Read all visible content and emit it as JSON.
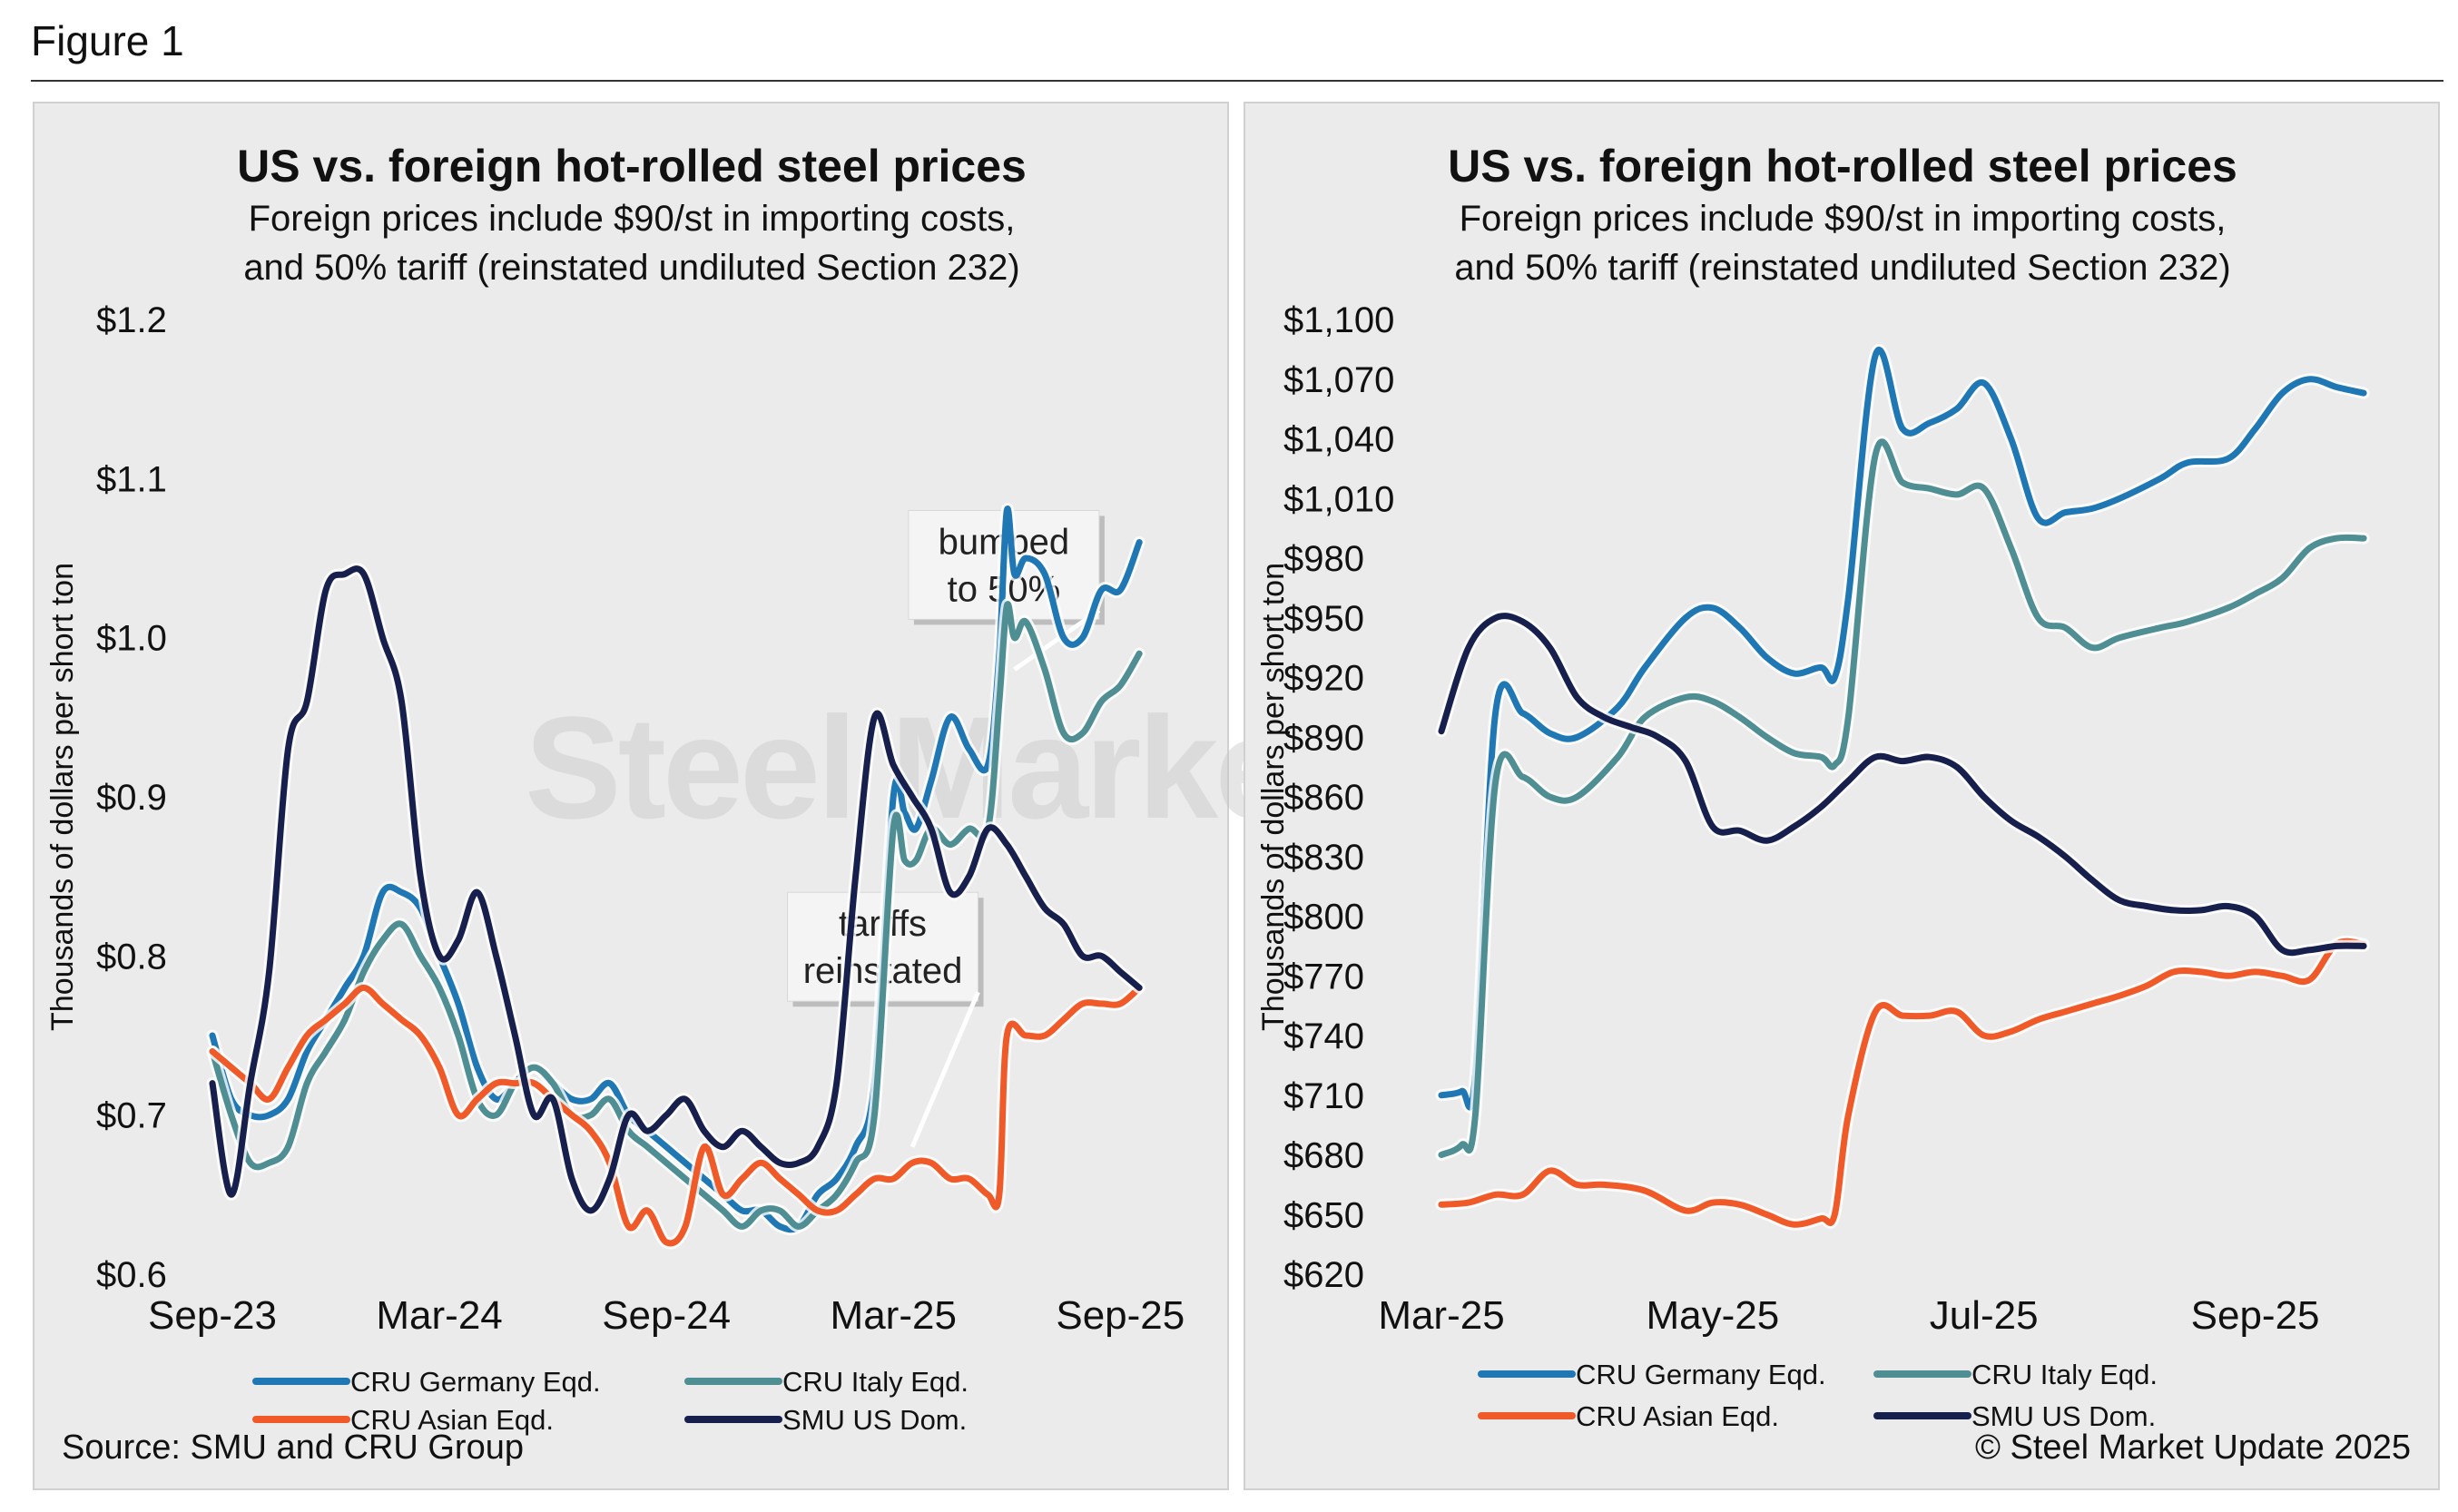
{
  "figure": {
    "label": "Figure 1",
    "source": "Source: SMU and CRU Group",
    "copyright": "© Steel Market Update 2025",
    "watermark": "Steel Market Update"
  },
  "colors": {
    "germany": "#1f77b4",
    "italy": "#4f8e93",
    "asian": "#ef5a28",
    "us": "#17204d"
  },
  "chart_data": [
    {
      "type": "line",
      "title": "US vs. foreign hot-rolled steel prices",
      "subtitle_line1": "Foreign prices include $90/st in importing costs,",
      "subtitle_line2": "and 50% tariff (reinstated undiluted Section 232)",
      "ylabel": "Thousands of dollars per short ton",
      "xlabel": "",
      "ylim": [
        0.6,
        1.2
      ],
      "yticks": [
        0.6,
        0.7,
        0.8,
        0.9,
        1.0,
        1.1,
        1.2
      ],
      "ytick_labels": [
        "$0.6",
        "$0.7",
        "$0.8",
        "$0.9",
        "$1.0",
        "$1.1",
        "$1.2"
      ],
      "xlim": [
        0,
        25
      ],
      "xticks": [
        0,
        6,
        12,
        18,
        24
      ],
      "xtick_labels": [
        "Sep-23",
        "Mar-24",
        "Sep-24",
        "Mar-25",
        "Sep-25"
      ],
      "legend_position": "bottom",
      "grid": false,
      "annotations": [
        {
          "line1": "bumped",
          "line2": "to 50%",
          "x": 21.2,
          "y": 0.98
        },
        {
          "line1": "tariffs",
          "line2": "reinstated",
          "x": 18.5,
          "y": 0.68
        }
      ],
      "series": [
        {
          "name": "CRU Germany Eqd.",
          "color_key": "germany",
          "x": [
            0,
            0.5,
            1,
            1.5,
            2,
            2.5,
            3,
            3.5,
            4,
            4.5,
            5,
            5.5,
            6,
            6.5,
            7,
            7.5,
            8,
            8.5,
            9,
            9.5,
            10,
            10.5,
            11,
            11.5,
            12,
            12.5,
            13,
            13.5,
            14,
            14.5,
            15,
            15.5,
            16,
            16.5,
            17,
            17.5,
            18,
            18.3,
            18.6,
            19,
            19.5,
            20,
            20.5,
            20.8,
            21,
            21.2,
            21.5,
            22,
            22.5,
            23,
            23.5,
            24,
            24.5
          ],
          "y": [
            0.75,
            0.71,
            0.7,
            0.7,
            0.71,
            0.74,
            0.76,
            0.78,
            0.8,
            0.84,
            0.84,
            0.83,
            0.8,
            0.77,
            0.73,
            0.71,
            0.72,
            0.73,
            0.72,
            0.71,
            0.71,
            0.72,
            0.7,
            0.69,
            0.68,
            0.67,
            0.66,
            0.65,
            0.64,
            0.64,
            0.63,
            0.63,
            0.65,
            0.66,
            0.68,
            0.72,
            0.9,
            0.89,
            0.88,
            0.91,
            0.95,
            0.93,
            0.92,
            0.99,
            1.08,
            1.04,
            1.05,
            1.04,
            1.0,
            1.0,
            1.03,
            1.03,
            1.06
          ]
        },
        {
          "name": "CRU Italy Eqd.",
          "color_key": "italy",
          "x": [
            0,
            0.5,
            1,
            1.5,
            2,
            2.5,
            3,
            3.5,
            4,
            4.5,
            5,
            5.5,
            6,
            6.5,
            7,
            7.5,
            8,
            8.5,
            9,
            9.5,
            10,
            10.5,
            11,
            11.5,
            12,
            12.5,
            13,
            13.5,
            14,
            14.5,
            15,
            15.5,
            16,
            16.5,
            17,
            17.5,
            18,
            18.3,
            18.6,
            19,
            19.5,
            20,
            20.5,
            20.8,
            21,
            21.2,
            21.5,
            22,
            22.5,
            23,
            23.5,
            24,
            24.5
          ],
          "y": [
            0.74,
            0.7,
            0.67,
            0.67,
            0.68,
            0.72,
            0.74,
            0.76,
            0.79,
            0.81,
            0.82,
            0.8,
            0.78,
            0.75,
            0.71,
            0.7,
            0.72,
            0.73,
            0.72,
            0.7,
            0.7,
            0.71,
            0.69,
            0.68,
            0.67,
            0.66,
            0.65,
            0.64,
            0.63,
            0.64,
            0.64,
            0.63,
            0.64,
            0.65,
            0.67,
            0.7,
            0.88,
            0.86,
            0.86,
            0.88,
            0.87,
            0.88,
            0.88,
            0.96,
            1.02,
            1.0,
            1.01,
            0.98,
            0.94,
            0.94,
            0.96,
            0.97,
            0.99
          ]
        },
        {
          "name": "CRU Asian Eqd.",
          "color_key": "asian",
          "x": [
            0,
            0.5,
            1,
            1.5,
            2,
            2.5,
            3,
            3.5,
            4,
            4.5,
            5,
            5.5,
            6,
            6.5,
            7,
            7.5,
            8,
            8.5,
            9,
            9.5,
            10,
            10.5,
            11,
            11.5,
            12,
            12.5,
            13,
            13.5,
            14,
            14.5,
            15,
            15.5,
            16,
            16.5,
            17,
            17.5,
            18,
            18.5,
            19,
            19.5,
            20,
            20.5,
            20.8,
            21,
            21.5,
            22,
            22.5,
            23,
            23.5,
            24,
            24.5
          ],
          "y": [
            0.74,
            0.73,
            0.72,
            0.71,
            0.73,
            0.75,
            0.76,
            0.77,
            0.78,
            0.77,
            0.76,
            0.75,
            0.73,
            0.7,
            0.71,
            0.72,
            0.72,
            0.72,
            0.71,
            0.7,
            0.69,
            0.67,
            0.63,
            0.64,
            0.62,
            0.63,
            0.68,
            0.65,
            0.66,
            0.67,
            0.66,
            0.65,
            0.64,
            0.64,
            0.65,
            0.66,
            0.66,
            0.67,
            0.67,
            0.66,
            0.66,
            0.65,
            0.65,
            0.75,
            0.75,
            0.75,
            0.76,
            0.77,
            0.77,
            0.77,
            0.78
          ]
        },
        {
          "name": "SMU US Dom.",
          "color_key": "us",
          "x": [
            0,
            0.5,
            1,
            1.5,
            2,
            2.5,
            3,
            3.5,
            4,
            4.5,
            5,
            5.5,
            6,
            6.5,
            7,
            7.5,
            8,
            8.5,
            9,
            9.5,
            10,
            10.5,
            11,
            11.5,
            12,
            12.5,
            13,
            13.5,
            14,
            14.5,
            15,
            15.5,
            16,
            16.5,
            17,
            17.5,
            18,
            18.5,
            19,
            19.5,
            20,
            20.5,
            21,
            21.5,
            22,
            22.5,
            23,
            23.5,
            24,
            24.5
          ],
          "y": [
            0.72,
            0.65,
            0.72,
            0.79,
            0.93,
            0.96,
            1.03,
            1.04,
            1.04,
            1.0,
            0.96,
            0.85,
            0.8,
            0.81,
            0.84,
            0.8,
            0.75,
            0.7,
            0.71,
            0.66,
            0.64,
            0.66,
            0.7,
            0.69,
            0.7,
            0.71,
            0.69,
            0.68,
            0.69,
            0.68,
            0.67,
            0.67,
            0.68,
            0.72,
            0.85,
            0.95,
            0.92,
            0.9,
            0.88,
            0.84,
            0.85,
            0.88,
            0.87,
            0.85,
            0.83,
            0.82,
            0.8,
            0.8,
            0.79,
            0.78
          ]
        }
      ]
    },
    {
      "type": "line",
      "title": "US vs. foreign hot-rolled steel prices",
      "subtitle_line1": "Foreign prices include $90/st in importing costs,",
      "subtitle_line2": "and 50% tariff (reinstated undiluted Section 232)",
      "ylabel": "Thousands of dollars per short ton",
      "xlabel": "",
      "ylim": [
        620,
        1100
      ],
      "yticks": [
        620,
        650,
        680,
        710,
        740,
        770,
        800,
        830,
        860,
        890,
        920,
        950,
        980,
        1010,
        1040,
        1070,
        1100
      ],
      "ytick_labels": [
        "$620",
        "$650",
        "$680",
        "$710",
        "$740",
        "$770",
        "$800",
        "$830",
        "$860",
        "$890",
        "$920",
        "$950",
        "$980",
        "$1,010",
        "$1,040",
        "$1,070",
        "$1,100"
      ],
      "xlim": [
        0,
        7.0
      ],
      "xticks": [
        0,
        2,
        4,
        6
      ],
      "xtick_labels": [
        "Mar-25",
        "May-25",
        "Jul-25",
        "Sep-25"
      ],
      "legend_position": "bottom",
      "grid": false,
      "series": [
        {
          "name": "CRU Germany Eqd.",
          "color_key": "germany",
          "x": [
            0,
            0.15,
            0.25,
            0.4,
            0.6,
            0.8,
            1.0,
            1.3,
            1.5,
            1.8,
            2.0,
            2.2,
            2.4,
            2.6,
            2.8,
            2.9,
            3.0,
            3.2,
            3.4,
            3.6,
            3.8,
            4.0,
            4.2,
            4.4,
            4.6,
            4.8,
            5.0,
            5.3,
            5.5,
            5.8,
            6.0,
            6.2,
            6.4,
            6.6,
            6.8
          ],
          "y": [
            710,
            712,
            720,
            903,
            902,
            892,
            890,
            905,
            925,
            950,
            955,
            945,
            930,
            922,
            925,
            920,
            960,
            1082,
            1045,
            1048,
            1055,
            1068,
            1040,
            1000,
            1003,
            1005,
            1010,
            1020,
            1028,
            1030,
            1045,
            1063,
            1070,
            1066,
            1063
          ]
        },
        {
          "name": "CRU Italy Eqd.",
          "color_key": "italy",
          "x": [
            0,
            0.15,
            0.25,
            0.4,
            0.6,
            0.8,
            1.0,
            1.3,
            1.5,
            1.8,
            2.0,
            2.2,
            2.4,
            2.6,
            2.8,
            2.9,
            3.0,
            3.2,
            3.4,
            3.6,
            3.8,
            4.0,
            4.2,
            4.4,
            4.6,
            4.8,
            5.0,
            5.3,
            5.5,
            5.8,
            6.0,
            6.2,
            6.4,
            6.6,
            6.8
          ],
          "y": [
            680,
            685,
            700,
            868,
            870,
            860,
            860,
            880,
            900,
            910,
            908,
            900,
            890,
            882,
            880,
            876,
            900,
            1032,
            1018,
            1015,
            1012,
            1015,
            985,
            950,
            945,
            935,
            940,
            945,
            948,
            955,
            962,
            970,
            985,
            990,
            990
          ]
        },
        {
          "name": "CRU Asian Eqd.",
          "color_key": "asian",
          "x": [
            0,
            0.2,
            0.4,
            0.6,
            0.8,
            1.0,
            1.2,
            1.5,
            1.8,
            2.0,
            2.2,
            2.4,
            2.6,
            2.8,
            2.9,
            3.0,
            3.2,
            3.4,
            3.6,
            3.8,
            4.0,
            4.2,
            4.4,
            4.6,
            4.8,
            5.0,
            5.2,
            5.4,
            5.6,
            5.8,
            6.0,
            6.2,
            6.4,
            6.6,
            6.8
          ],
          "y": [
            655,
            656,
            660,
            660,
            672,
            665,
            665,
            662,
            652,
            656,
            655,
            650,
            645,
            648,
            650,
            700,
            752,
            750,
            750,
            752,
            740,
            742,
            748,
            752,
            756,
            760,
            765,
            772,
            772,
            770,
            772,
            770,
            768,
            786,
            786
          ]
        },
        {
          "name": "SMU US Dom.",
          "color_key": "us",
          "x": [
            0,
            0.2,
            0.4,
            0.6,
            0.8,
            1.0,
            1.2,
            1.4,
            1.6,
            1.8,
            2.0,
            2.2,
            2.4,
            2.6,
            2.8,
            3.0,
            3.2,
            3.4,
            3.6,
            3.8,
            4.0,
            4.2,
            4.4,
            4.6,
            4.8,
            5.0,
            5.2,
            5.4,
            5.6,
            5.8,
            6.0,
            6.2,
            6.4,
            6.6,
            6.8
          ],
          "y": [
            893,
            935,
            950,
            948,
            935,
            910,
            900,
            895,
            890,
            878,
            845,
            843,
            838,
            845,
            855,
            868,
            880,
            878,
            880,
            875,
            860,
            848,
            840,
            830,
            818,
            808,
            805,
            803,
            803,
            805,
            800,
            783,
            783,
            785,
            785
          ]
        }
      ]
    }
  ]
}
